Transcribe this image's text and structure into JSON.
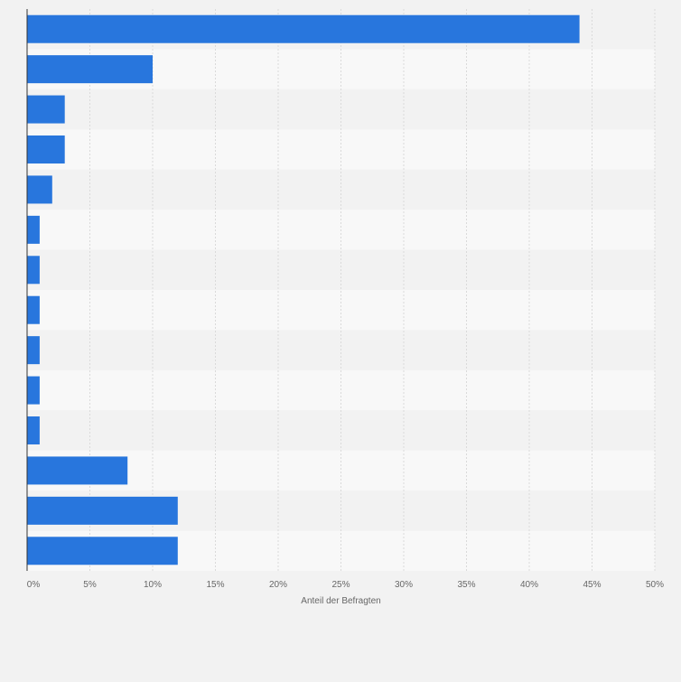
{
  "chart_data": {
    "type": "bar",
    "orientation": "horizontal",
    "categories": [
      "",
      "",
      "",
      "",
      "",
      "",
      "",
      "",
      "",
      "",
      "",
      "",
      "",
      ""
    ],
    "values": [
      44,
      10,
      3,
      3,
      2,
      1,
      1,
      1,
      1,
      1,
      1,
      8,
      12,
      12
    ],
    "title": "",
    "xlabel": "Anteil der Befragten",
    "ylabel": "",
    "xlim": [
      0,
      50
    ],
    "xticks": [
      0,
      5,
      10,
      15,
      20,
      25,
      30,
      35,
      40,
      45,
      50
    ],
    "tick_labels": [
      "0%",
      "5%",
      "10%",
      "15%",
      "20%",
      "25%",
      "30%",
      "35%",
      "40%",
      "45%",
      "50%"
    ],
    "grid": true,
    "legend": "none",
    "colors": {
      "bar": "#2876dd",
      "band_light": "#f8f8f8",
      "band_dark": "#f2f2f2",
      "gridline": "#dadada",
      "axis": "#333333",
      "tick_text": "#666666"
    }
  }
}
